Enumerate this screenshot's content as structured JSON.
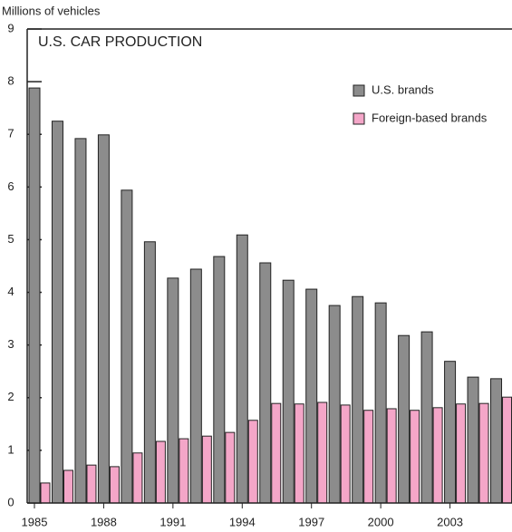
{
  "chart_data": {
    "type": "bar",
    "title": "U.S. CAR PRODUCTION",
    "y_label": "Millions of vehicles",
    "categories": [
      "1985",
      null,
      null,
      "1988",
      null,
      null,
      "1991",
      null,
      null,
      "1994",
      null,
      null,
      "1997",
      null,
      null,
      "2000",
      null,
      null,
      "2003",
      null,
      null
    ],
    "series": [
      {
        "name": "U.S. brands",
        "color": "#8c8c8c",
        "values": [
          7.88,
          7.25,
          6.92,
          6.99,
          5.94,
          4.96,
          4.27,
          4.44,
          4.68,
          5.09,
          4.56,
          4.23,
          4.06,
          3.75,
          3.92,
          3.8,
          3.18,
          3.25,
          2.69,
          2.39,
          2.36
        ]
      },
      {
        "name": "Foreign-based brands",
        "color": "#f4a6c8",
        "values": [
          0.38,
          0.62,
          0.72,
          0.69,
          0.95,
          1.17,
          1.22,
          1.27,
          1.34,
          1.57,
          1.89,
          1.88,
          1.91,
          1.86,
          1.76,
          1.79,
          1.76,
          1.81,
          1.88,
          1.89,
          2.01
        ]
      }
    ],
    "ylim": [
      0,
      9
    ],
    "yticks": [
      0,
      1,
      2,
      3,
      4,
      5,
      6,
      7,
      8,
      9
    ],
    "legend": "top-right"
  }
}
